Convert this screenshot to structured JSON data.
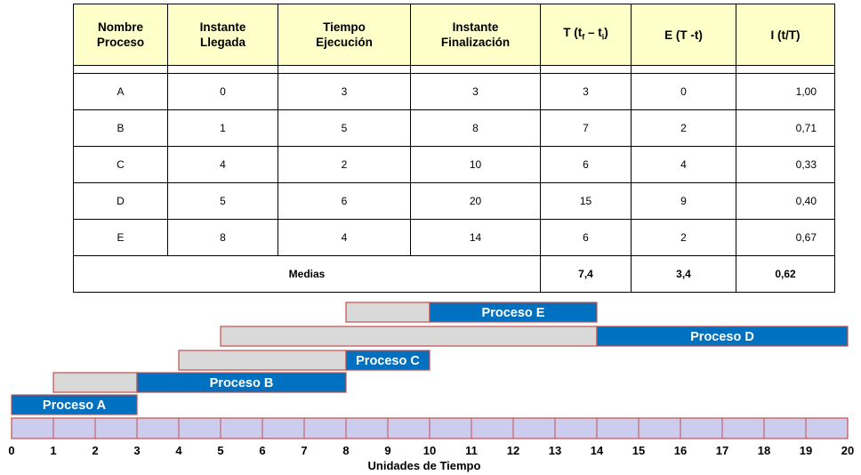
{
  "table": {
    "headers": {
      "name": "Nombre\nProceso",
      "arrival": "Instante\nLlegada",
      "exec": "Tiempo\nEjecución",
      "finish": "Instante\nFinalización",
      "turnaround": "T (tf – ti)",
      "wait": "E (T -t)",
      "index": "I (t/T)"
    },
    "rows": [
      {
        "name": "A",
        "arrival": "0",
        "exec": "3",
        "finish": "3",
        "turnaround": "3",
        "wait": "0",
        "index": "1,00"
      },
      {
        "name": "B",
        "arrival": "1",
        "exec": "5",
        "finish": "8",
        "turnaround": "7",
        "wait": "2",
        "index": "0,71"
      },
      {
        "name": "C",
        "arrival": "4",
        "exec": "2",
        "finish": "10",
        "turnaround": "6",
        "wait": "4",
        "index": "0,33"
      },
      {
        "name": "D",
        "arrival": "5",
        "exec": "6",
        "finish": "20",
        "turnaround": "15",
        "wait": "9",
        "index": "0,40"
      },
      {
        "name": "E",
        "arrival": "8",
        "exec": "4",
        "finish": "14",
        "turnaround": "6",
        "wait": "2",
        "index": "0,67"
      }
    ],
    "footer": {
      "label": "Medias",
      "turnaround": "7,4",
      "wait": "3,4",
      "index": "0,62"
    }
  },
  "gantt": {
    "axis_label": "Unidades de Tiempo",
    "ticks": [
      "0",
      "1",
      "2",
      "3",
      "4",
      "5",
      "6",
      "7",
      "8",
      "9",
      "10",
      "11",
      "12",
      "13",
      "14",
      "15",
      "16",
      "17",
      "18",
      "19",
      "20"
    ],
    "processes": [
      {
        "label": "Proceso A",
        "arrival": 0,
        "start": 0,
        "end": 3
      },
      {
        "label": "Proceso B",
        "arrival": 1,
        "start": 3,
        "end": 8
      },
      {
        "label": "Proceso C",
        "arrival": 4,
        "start": 8,
        "end": 10
      },
      {
        "label": "Proceso D",
        "arrival": 5,
        "start": 14,
        "end": 20
      },
      {
        "label": "Proceso E",
        "arrival": 8,
        "start": 10,
        "end": 14
      }
    ],
    "colors": {
      "run": "#0070c0",
      "wait": "#d9d9d9",
      "border": "#c0504d",
      "timeline": "#ccccee"
    }
  }
}
